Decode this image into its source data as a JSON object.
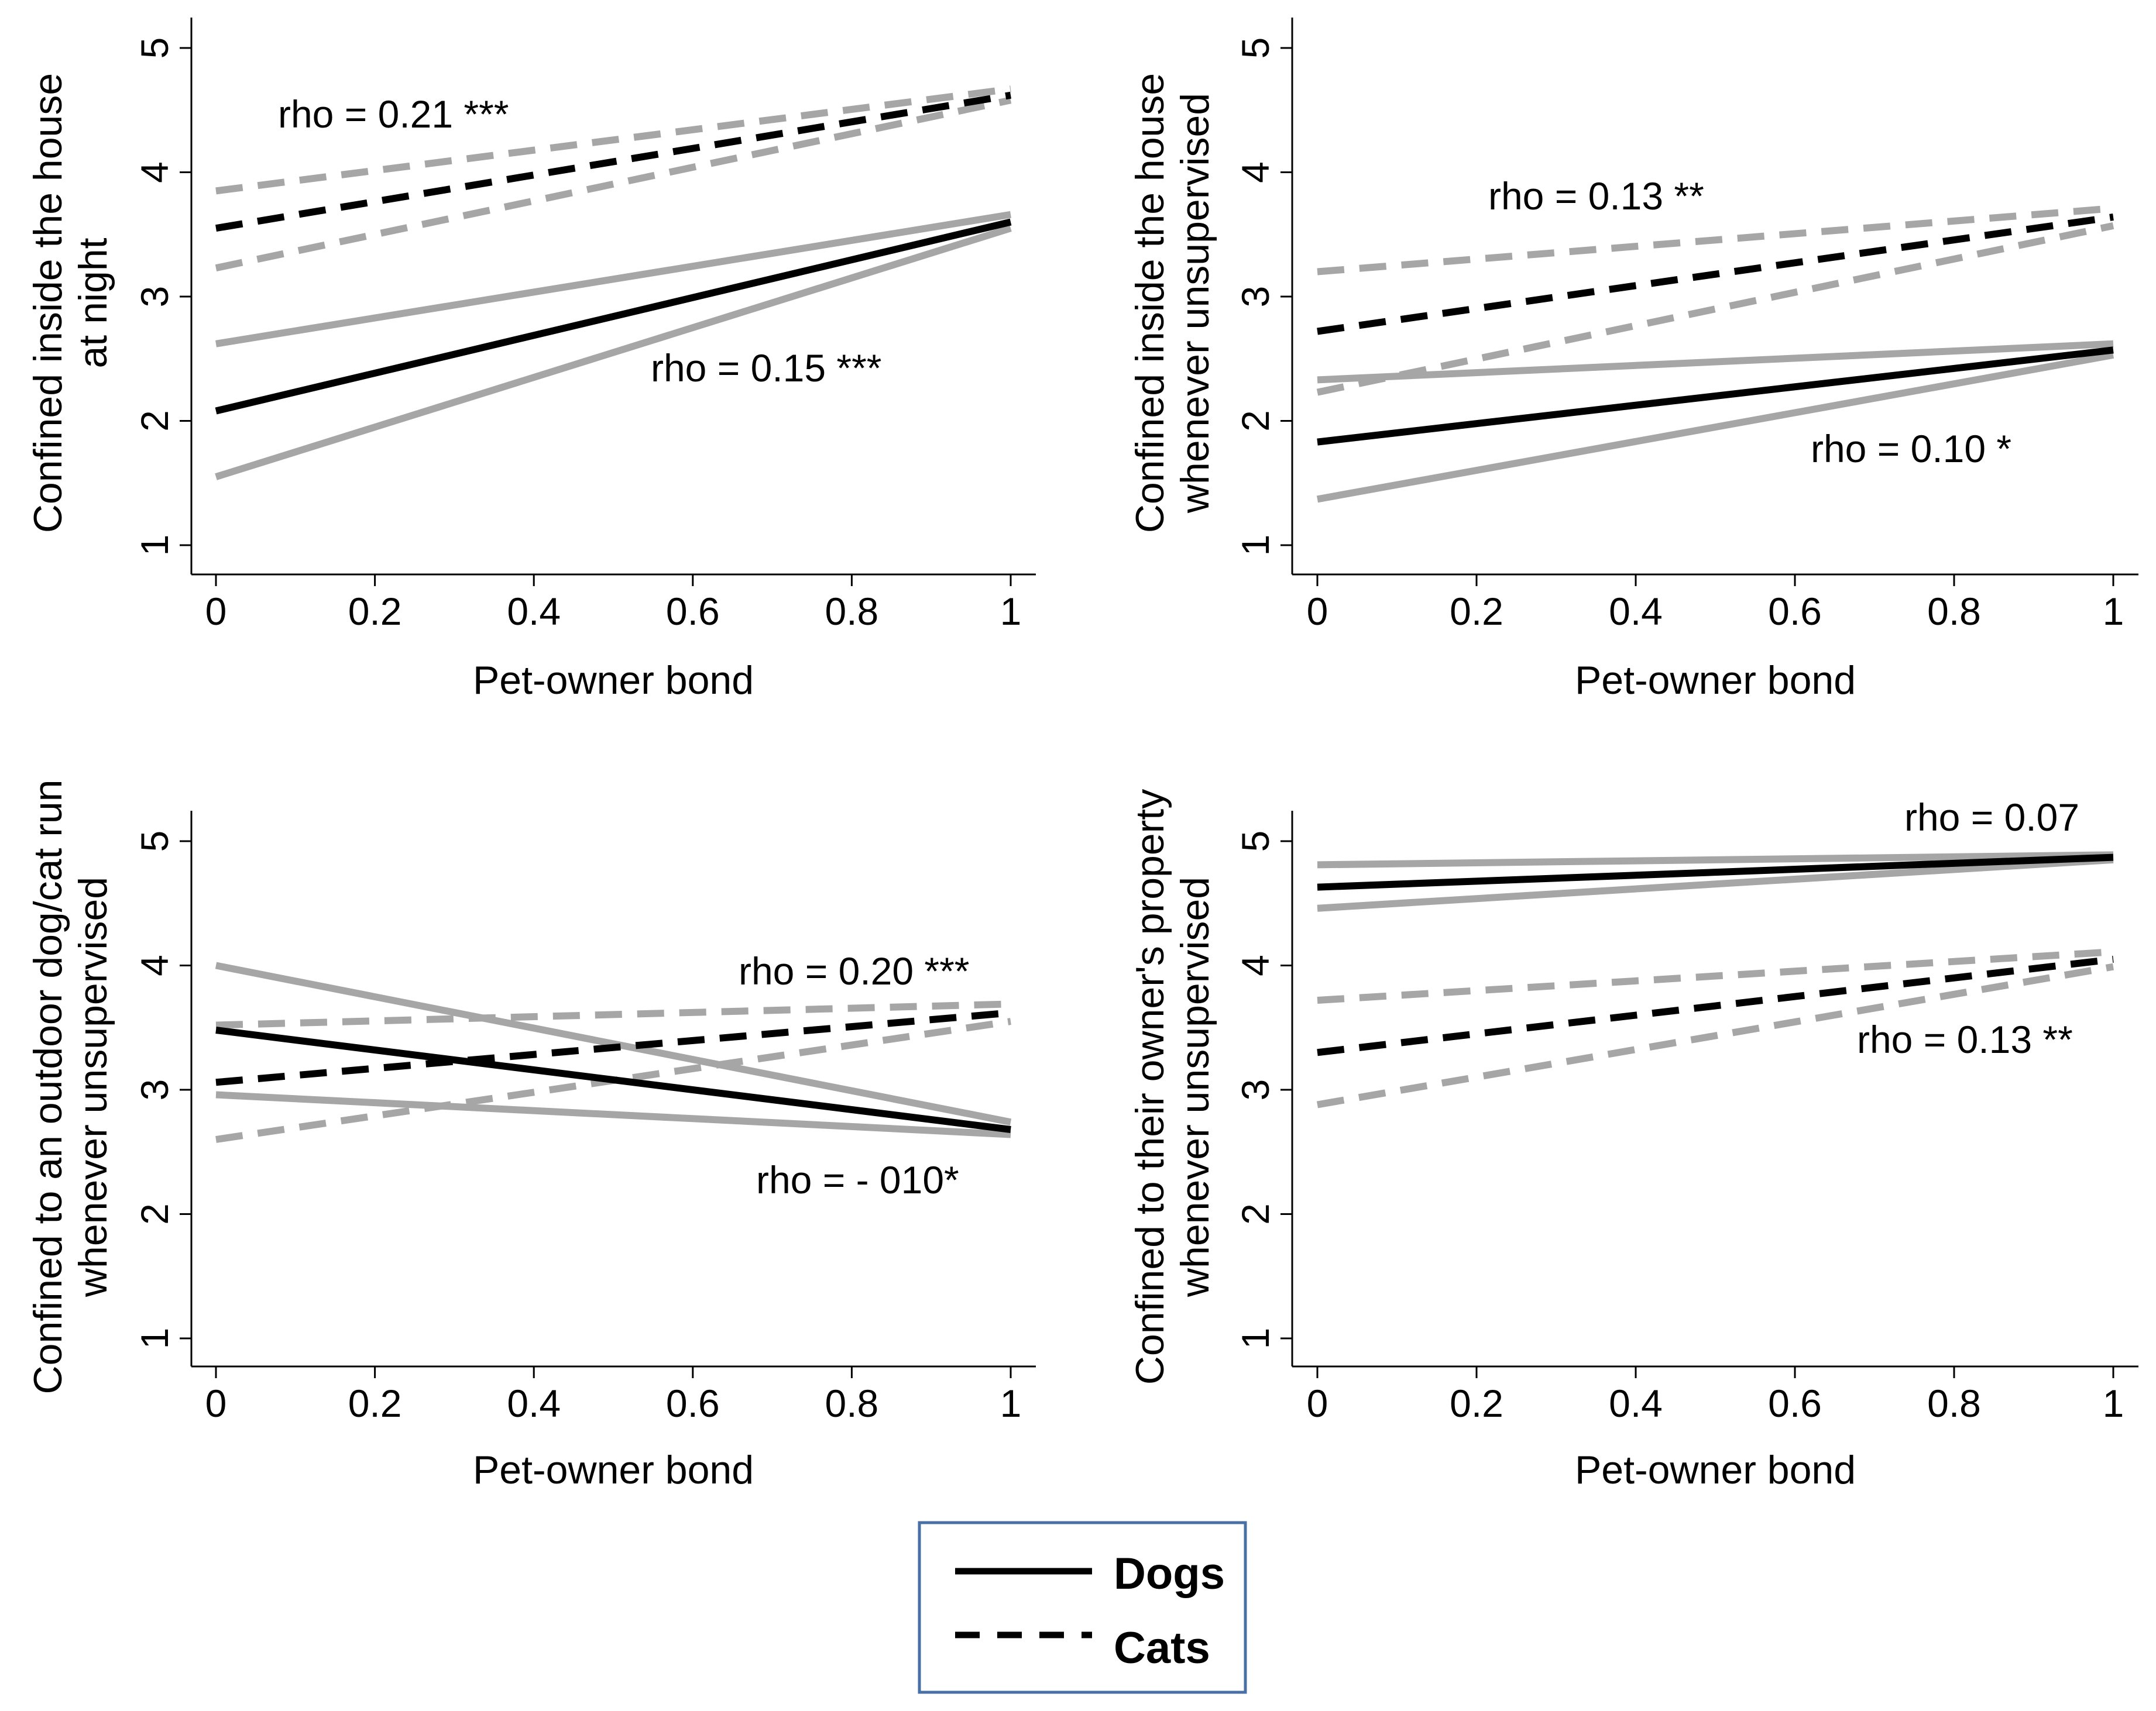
{
  "chart_data": [
    {
      "type": "line",
      "xlabel": "Pet-owner bond",
      "ylabel_lines": [
        "Confined inside the house",
        "at night"
      ],
      "xlim": [
        0,
        1
      ],
      "ylim": [
        1,
        5
      ],
      "xticks": [
        "0",
        "0.2",
        "0.4",
        "0.6",
        "0.8",
        "1"
      ],
      "yticks": [
        "1",
        "2",
        "3",
        "4",
        "5"
      ],
      "series": [
        {
          "name": "Dogs",
          "style": "solid",
          "x": [
            0,
            1
          ],
          "fit": [
            2.08,
            3.6
          ],
          "ci_lower": [
            1.55,
            3.55
          ],
          "ci_upper": [
            2.62,
            3.66
          ]
        },
        {
          "name": "Cats",
          "style": "dashed",
          "x": [
            0,
            1
          ],
          "fit": [
            3.55,
            4.62
          ],
          "ci_lower": [
            3.23,
            4.58
          ],
          "ci_upper": [
            3.85,
            4.67
          ]
        }
      ],
      "annotations": [
        "rho = 0.21 ***",
        "rho = 0.15 ***"
      ]
    },
    {
      "type": "line",
      "xlabel": "Pet-owner bond",
      "ylabel_lines": [
        "Confined inside the house",
        "whenever unsupervised"
      ],
      "xlim": [
        0,
        1
      ],
      "ylim": [
        1,
        5
      ],
      "xticks": [
        "0",
        "0.2",
        "0.4",
        "0.6",
        "0.8",
        "1"
      ],
      "yticks": [
        "1",
        "2",
        "3",
        "4",
        "5"
      ],
      "series": [
        {
          "name": "Dogs",
          "style": "solid",
          "x": [
            0,
            1
          ],
          "fit": [
            1.83,
            2.57
          ],
          "ci_lower": [
            1.37,
            2.53
          ],
          "ci_upper": [
            2.33,
            2.62
          ]
        },
        {
          "name": "Cats",
          "style": "dashed",
          "x": [
            0,
            1
          ],
          "fit": [
            2.72,
            3.64
          ],
          "ci_lower": [
            2.23,
            3.57
          ],
          "ci_upper": [
            3.2,
            3.71
          ]
        }
      ],
      "annotations": [
        "rho = 0.13 **",
        "rho = 0.10 *"
      ]
    },
    {
      "type": "line",
      "xlabel": "Pet-owner bond",
      "ylabel_lines": [
        "Confined to an outdoor dog/cat run",
        "whenever unsupervised"
      ],
      "xlim": [
        0,
        1
      ],
      "ylim": [
        1,
        5
      ],
      "xticks": [
        "0",
        "0.2",
        "0.4",
        "0.6",
        "0.8",
        "1"
      ],
      "yticks": [
        "1",
        "2",
        "3",
        "4",
        "5"
      ],
      "series": [
        {
          "name": "Dogs",
          "style": "solid",
          "x": [
            0,
            1
          ],
          "fit": [
            3.48,
            2.68
          ],
          "ci_lower": [
            2.96,
            2.64
          ],
          "ci_upper": [
            4.0,
            2.74
          ]
        },
        {
          "name": "Cats",
          "style": "dashed",
          "x": [
            0,
            1
          ],
          "fit": [
            3.06,
            3.62
          ],
          "ci_lower": [
            2.6,
            3.55
          ],
          "ci_upper": [
            3.52,
            3.69
          ]
        }
      ],
      "annotations": [
        "rho = 0.20 ***",
        "rho = - 010*"
      ]
    },
    {
      "type": "line",
      "xlabel": "Pet-owner bond",
      "ylabel_lines": [
        "Confined to their owner's property",
        "whenever unsupervised"
      ],
      "xlim": [
        0,
        1
      ],
      "ylim": [
        1,
        5
      ],
      "xticks": [
        "0",
        "0.2",
        "0.4",
        "0.6",
        "0.8",
        "1"
      ],
      "yticks": [
        "1",
        "2",
        "3",
        "4",
        "5"
      ],
      "series": [
        {
          "name": "Dogs",
          "style": "solid",
          "x": [
            0,
            1
          ],
          "fit": [
            4.63,
            4.87
          ],
          "ci_lower": [
            4.46,
            4.85
          ],
          "ci_upper": [
            4.81,
            4.89
          ]
        },
        {
          "name": "Cats",
          "style": "dashed",
          "x": [
            0,
            1
          ],
          "fit": [
            3.3,
            4.05
          ],
          "ci_lower": [
            2.88,
            3.99
          ],
          "ci_upper": [
            3.72,
            4.11
          ]
        }
      ],
      "annotations": [
        "rho = 0.07",
        "rho = 0.13 **"
      ]
    }
  ],
  "legend": {
    "items": [
      {
        "label": "Dogs",
        "style": "solid"
      },
      {
        "label": "Cats",
        "style": "dashed"
      }
    ]
  },
  "colors": {
    "fit": "#000000",
    "ci": "#a6a6a6",
    "axis": "#000000",
    "legend_border": "#4a6fa5"
  }
}
